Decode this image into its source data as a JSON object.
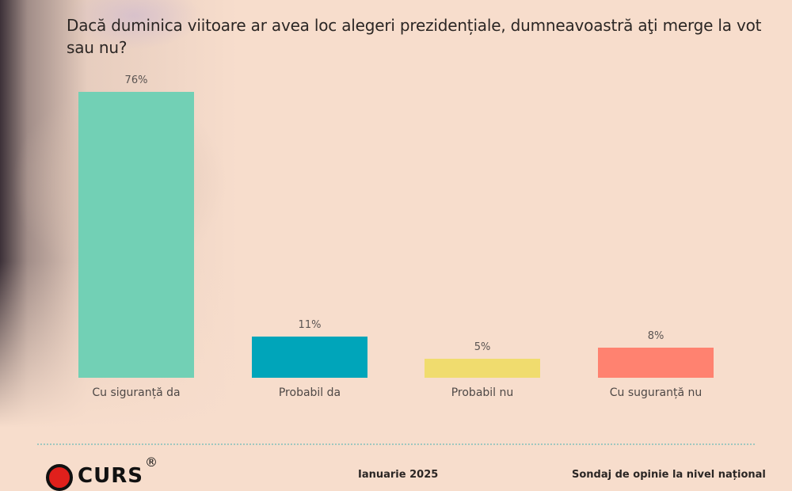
{
  "title": "Dacă duminica viitoare ar avea loc alegeri prezidențiale, dumneavoastră aţi merge la vot sau nu?",
  "chart_data": {
    "type": "bar",
    "title": "Dacă duminica viitoare ar avea loc alegeri prezidențiale, dumneavoastră aţi merge la vot sau nu?",
    "categories": [
      "Cu siguranță da",
      "Probabil da",
      "Probabil nu",
      "Cu suguranță nu"
    ],
    "values": [
      76,
      11,
      5,
      8
    ],
    "value_labels": [
      "76%",
      "11%",
      "5%",
      "8%"
    ],
    "colors": [
      "#72d0b5",
      "#00a5ba",
      "#f0dc6e",
      "#ff8270"
    ],
    "xlabel": "",
    "ylabel": "",
    "ylim": [
      0,
      76
    ],
    "grid": false,
    "legend": "none"
  },
  "footer": {
    "logo_text": "CURS",
    "logo_reg": "®",
    "date_text": "Ianuarie 2025",
    "source_text": "Sondaj de opinie la nivel național"
  },
  "colors": {
    "background": "#f7ddcc",
    "divider": "#9fc7c0"
  }
}
